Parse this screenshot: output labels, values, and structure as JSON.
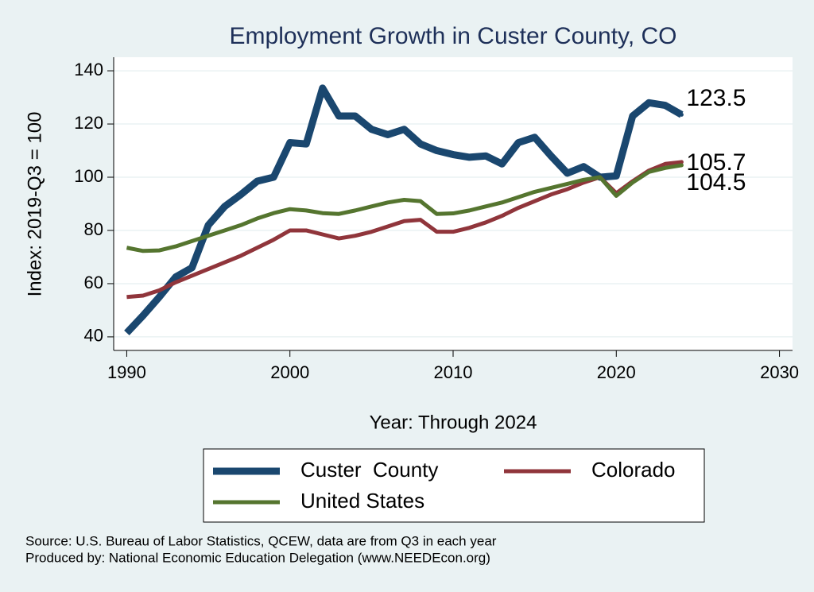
{
  "chart_data": {
    "type": "line",
    "title": "Employment Growth in Custer County, CO",
    "x_label": "Year: Through 2024",
    "y_label": "Index: 2019-Q3 = 100",
    "x": [
      1990,
      1991,
      1992,
      1993,
      1994,
      1995,
      1996,
      1997,
      1998,
      1999,
      2000,
      2001,
      2002,
      2003,
      2004,
      2005,
      2006,
      2007,
      2008,
      2009,
      2010,
      2011,
      2012,
      2013,
      2014,
      2015,
      2016,
      2017,
      2018,
      2019,
      2020,
      2021,
      2022,
      2023,
      2024
    ],
    "series": [
      {
        "name": "Custer  County",
        "color": "#1a476f",
        "values": [
          41.5,
          48,
          55,
          62.5,
          66,
          82,
          89,
          93.5,
          98.5,
          100,
          113,
          112.5,
          133.5,
          123,
          123,
          118,
          116,
          118,
          112.5,
          110,
          108.5,
          107.5,
          108,
          105,
          113,
          115,
          108,
          101.5,
          104,
          100,
          100.5,
          123,
          128,
          127,
          123.5
        ]
      },
      {
        "name": "Colorado",
        "color": "#90353b",
        "values": [
          55,
          55.5,
          57.5,
          60.5,
          63,
          65.5,
          68,
          70.5,
          73.5,
          76.5,
          80,
          80,
          78.5,
          77,
          78,
          79.5,
          81.5,
          83.5,
          84,
          79.5,
          79.5,
          81,
          83,
          85.5,
          88.5,
          91,
          93.5,
          95.5,
          98,
          100,
          94,
          98.5,
          102.5,
          105,
          105.7
        ]
      },
      {
        "name": "United States",
        "color": "#55752f",
        "values": [
          73.5,
          72.3,
          72.5,
          74,
          76,
          78,
          80,
          82,
          84.5,
          86.5,
          88,
          87.5,
          86.5,
          86.2,
          87.5,
          89,
          90.5,
          91.5,
          91,
          86.2,
          86.4,
          87.5,
          89,
          90.5,
          92.5,
          94.5,
          96,
          97.5,
          99,
          100,
          93,
          98,
          102,
          103.5,
          104.5
        ]
      }
    ],
    "xlim": [
      1989.2,
      2030.8
    ],
    "ylim": [
      34.9,
      145.1
    ],
    "xticks": [
      1990,
      2000,
      2010,
      2020,
      2030
    ],
    "yticks": [
      40,
      60,
      80,
      100,
      120,
      140
    ],
    "grid": true,
    "annotations": [
      "Source: U.S. Bureau of Labor Statistics, QCEW, data are from Q3 in each year",
      "Produced by: National Economic Education Delegation (www.NEEDEcon.org)"
    ]
  }
}
